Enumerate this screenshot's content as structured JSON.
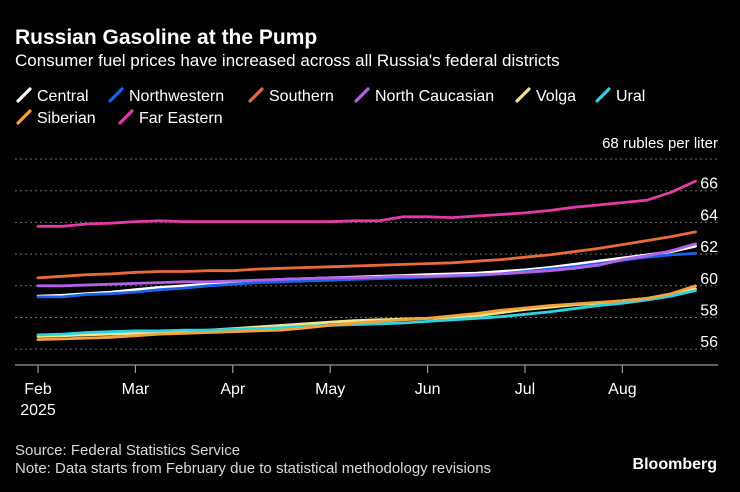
{
  "chart_data": {
    "type": "line",
    "title": "Russian Gasoline at the Pump",
    "subtitle": "Consumer fuel prices have increased across all Russia's federal districts",
    "ylabel": "68 rubles per liter",
    "xlabel": "",
    "ylim": [
      55,
      68
    ],
    "yticks": [
      56,
      58,
      60,
      62,
      64,
      66
    ],
    "x_months": [
      {
        "label": "Feb",
        "sublabel": "2025",
        "pos": 0
      },
      {
        "label": "Mar",
        "pos": 4
      },
      {
        "label": "Apr",
        "pos": 8
      },
      {
        "label": "May",
        "pos": 12
      },
      {
        "label": "Jun",
        "pos": 16
      },
      {
        "label": "Jul",
        "pos": 20
      },
      {
        "label": "Aug",
        "pos": 24
      }
    ],
    "x": [
      0,
      1,
      2,
      3,
      4,
      5,
      6,
      7,
      8,
      9,
      10,
      11,
      12,
      13,
      14,
      15,
      16,
      17,
      18,
      19,
      20,
      21,
      22,
      23,
      24,
      25,
      26,
      27
    ],
    "series": [
      {
        "name": "Central",
        "color": "#ffffff",
        "values": [
          59.35,
          59.4,
          59.5,
          59.6,
          59.75,
          59.9,
          60.0,
          60.1,
          60.2,
          60.3,
          60.4,
          60.45,
          60.5,
          60.55,
          60.6,
          60.65,
          60.7,
          60.75,
          60.8,
          60.9,
          61.0,
          61.15,
          61.35,
          61.55,
          61.75,
          61.95,
          62.15,
          62.5
        ]
      },
      {
        "name": "Northwestern",
        "color": "#1a62e8",
        "values": [
          59.3,
          59.3,
          59.45,
          59.5,
          59.6,
          59.75,
          59.85,
          60.0,
          60.1,
          60.2,
          60.25,
          60.3,
          60.35,
          60.4,
          60.45,
          60.5,
          60.55,
          60.6,
          60.65,
          60.75,
          60.9,
          61.05,
          61.2,
          61.4,
          61.6,
          61.8,
          61.95,
          62.05
        ]
      },
      {
        "name": "Southern",
        "color": "#ea6a3a",
        "values": [
          60.5,
          60.6,
          60.7,
          60.75,
          60.85,
          60.9,
          60.9,
          60.95,
          60.95,
          61.05,
          61.1,
          61.15,
          61.2,
          61.25,
          61.3,
          61.35,
          61.4,
          61.45,
          61.55,
          61.65,
          61.8,
          61.95,
          62.15,
          62.35,
          62.6,
          62.85,
          63.1,
          63.4
        ]
      },
      {
        "name": "North Caucasian",
        "color": "#b163e8",
        "values": [
          60.0,
          60.0,
          60.05,
          60.1,
          60.15,
          60.2,
          60.25,
          60.25,
          60.3,
          60.35,
          60.4,
          60.45,
          60.5,
          60.5,
          60.55,
          60.6,
          60.6,
          60.65,
          60.7,
          60.75,
          60.85,
          60.95,
          61.1,
          61.3,
          61.65,
          61.9,
          62.2,
          62.65
        ]
      },
      {
        "name": "Volga",
        "color": "#f3e58a",
        "values": [
          56.8,
          56.85,
          56.9,
          56.95,
          57.0,
          57.1,
          57.15,
          57.2,
          57.3,
          57.4,
          57.5,
          57.6,
          57.7,
          57.8,
          57.85,
          57.9,
          57.95,
          58.0,
          58.1,
          58.3,
          58.5,
          58.65,
          58.8,
          58.9,
          59.05,
          59.2,
          59.45,
          59.8
        ]
      },
      {
        "name": "Ural",
        "color": "#2ad4e6",
        "values": [
          56.9,
          56.95,
          57.05,
          57.1,
          57.15,
          57.15,
          57.2,
          57.2,
          57.25,
          57.3,
          57.35,
          57.45,
          57.5,
          57.55,
          57.6,
          57.65,
          57.75,
          57.85,
          57.95,
          58.05,
          58.2,
          58.35,
          58.55,
          58.75,
          58.9,
          59.1,
          59.35,
          59.7
        ]
      },
      {
        "name": "Siberian",
        "color": "#f5a13b",
        "values": [
          56.6,
          56.65,
          56.7,
          56.75,
          56.85,
          56.95,
          57.0,
          57.05,
          57.1,
          57.15,
          57.2,
          57.35,
          57.5,
          57.65,
          57.75,
          57.85,
          57.95,
          58.1,
          58.25,
          58.45,
          58.6,
          58.75,
          58.85,
          58.95,
          59.05,
          59.2,
          59.5,
          60.0
        ]
      },
      {
        "name": "Far Eastern",
        "color": "#e33aa8",
        "values": [
          63.75,
          63.75,
          63.9,
          63.95,
          64.05,
          64.1,
          64.05,
          64.05,
          64.05,
          64.05,
          64.05,
          64.05,
          64.05,
          64.1,
          64.1,
          64.35,
          64.35,
          64.3,
          64.4,
          64.5,
          64.6,
          64.75,
          64.95,
          65.1,
          65.25,
          65.4,
          65.9,
          66.6
        ]
      }
    ]
  },
  "footer": {
    "source": "Source: Federal Statistics Service",
    "note": "Note: Data starts from February due to statistical methodology revisions",
    "brand": "Bloomberg"
  },
  "colors": {
    "background": "#000000",
    "gridline": "#6e6e6e",
    "axis": "#9a9a9a",
    "text": "#ffffff"
  }
}
